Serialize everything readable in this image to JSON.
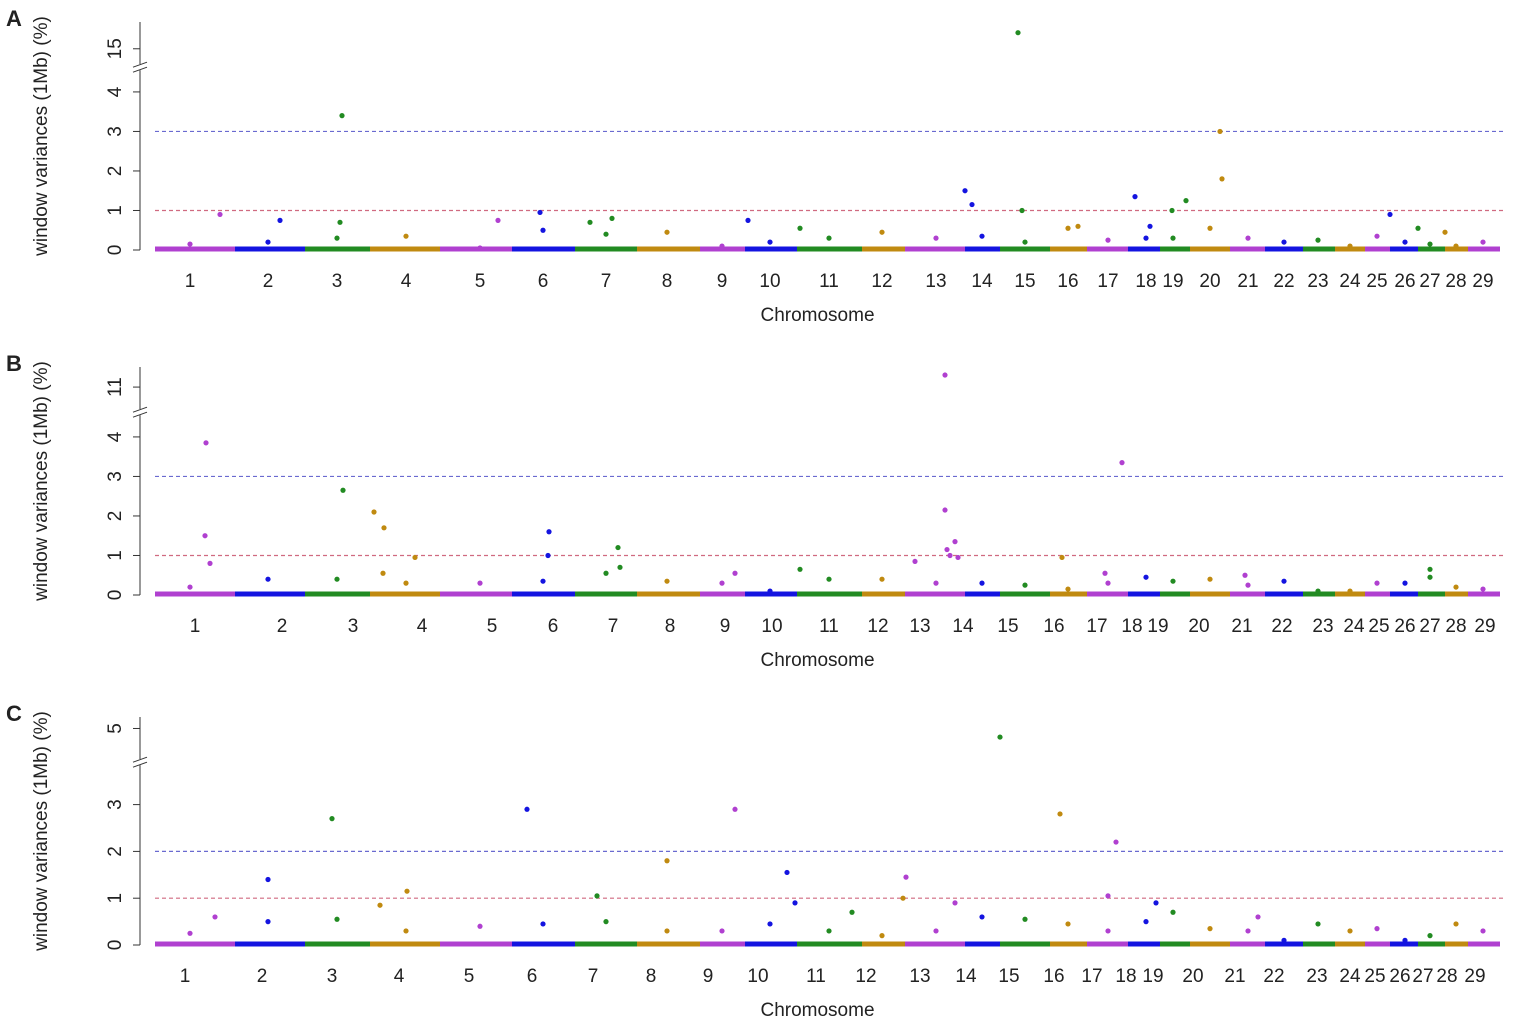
{
  "chart_data": [
    {
      "type": "scatter",
      "panel": "A",
      "y_label": "window variances (1Mb) (%)",
      "x_label": "Chromosome",
      "xlim": [
        0,
        1345
      ],
      "chrom_edges": [
        0,
        80,
        150,
        215,
        285,
        357,
        420,
        482,
        545,
        590,
        642,
        707,
        750,
        810,
        845,
        895,
        932,
        973,
        1005,
        1035,
        1075,
        1110,
        1148,
        1180,
        1210,
        1235,
        1263,
        1290,
        1313,
        1345
      ],
      "xticks": [
        {
          "value": 35,
          "label": "1"
        },
        {
          "value": 113,
          "label": "2"
        },
        {
          "value": 182,
          "label": "3"
        },
        {
          "value": 251,
          "label": "4"
        },
        {
          "value": 325,
          "label": "5"
        },
        {
          "value": 388,
          "label": "6"
        },
        {
          "value": 451,
          "label": "7"
        },
        {
          "value": 512,
          "label": "8"
        },
        {
          "value": 567,
          "label": "9"
        },
        {
          "value": 615,
          "label": "10"
        },
        {
          "value": 674,
          "label": "11"
        },
        {
          "value": 727,
          "label": "12"
        },
        {
          "value": 781,
          "label": "13"
        },
        {
          "value": 827,
          "label": "14"
        },
        {
          "value": 870,
          "label": "15"
        },
        {
          "value": 913,
          "label": "16"
        },
        {
          "value": 953,
          "label": "17"
        },
        {
          "value": 991,
          "label": "18"
        },
        {
          "value": 1018,
          "label": "19"
        },
        {
          "value": 1055,
          "label": "20"
        },
        {
          "value": 1093,
          "label": "21"
        },
        {
          "value": 1129,
          "label": "22"
        },
        {
          "value": 1163,
          "label": "23"
        },
        {
          "value": 1195,
          "label": "24"
        },
        {
          "value": 1222,
          "label": "25"
        },
        {
          "value": 1250,
          "label": "26"
        },
        {
          "value": 1275,
          "label": "27"
        },
        {
          "value": 1301,
          "label": "28"
        },
        {
          "value": 1328,
          "label": "29"
        }
      ],
      "ylim": [
        0,
        16
      ],
      "ybreak": [
        4.5,
        14.5
      ],
      "yticks": [
        0,
        1,
        2,
        3,
        4,
        15
      ],
      "thresholds": [
        {
          "value": 3,
          "color": "#6a6ad0"
        },
        {
          "value": 1,
          "color": "#d06a80"
        }
      ],
      "palette": [
        "#b040d0",
        "#1414e0",
        "#228b22",
        "#c08a10"
      ],
      "x": [
        35,
        113,
        182,
        251,
        325,
        388,
        451,
        512,
        567,
        615,
        674,
        727,
        781,
        827,
        870,
        913,
        953,
        991,
        1018,
        1055,
        1093,
        1129,
        1163,
        1195,
        1222,
        1250,
        1275,
        1301,
        1328,
        863,
        187,
        65,
        185,
        125,
        457,
        385,
        593,
        810,
        817,
        980,
        1031,
        1017,
        867,
        1065,
        1067,
        1235,
        1263,
        923,
        995,
        1290,
        645,
        343,
        435
      ],
      "values": [
        0.15,
        0.2,
        0.3,
        0.35,
        0.05,
        0.5,
        0.4,
        0.45,
        0.1,
        0.2,
        0.3,
        0.45,
        0.3,
        0.35,
        0.2,
        0.55,
        0.25,
        0.3,
        0.3,
        0.55,
        0.3,
        0.2,
        0.25,
        0.1,
        0.35,
        0.2,
        0.15,
        0.1,
        0.2,
        15.6,
        3.4,
        0.9,
        0.7,
        0.75,
        0.8,
        0.95,
        0.75,
        1.5,
        1.15,
        1.35,
        1.25,
        1.0,
        1.0,
        3.0,
        1.8,
        0.9,
        0.55,
        0.6,
        0.6,
        0.45,
        0.55,
        0.75,
        0.7
      ]
    },
    {
      "type": "scatter",
      "panel": "B",
      "y_label": "window variances (1Mb) (%)",
      "x_label": "Chromosome",
      "xlim": [
        0,
        1345
      ],
      "chrom_edges": [
        0,
        80,
        150,
        215,
        285,
        357,
        420,
        482,
        545,
        590,
        642,
        707,
        750,
        810,
        845,
        895,
        932,
        973,
        1005,
        1035,
        1075,
        1110,
        1148,
        1180,
        1210,
        1235,
        1263,
        1290,
        1313,
        1345
      ],
      "xticks": [
        {
          "value": 40,
          "label": "1"
        },
        {
          "value": 127,
          "label": "2"
        },
        {
          "value": 198,
          "label": "3"
        },
        {
          "value": 267,
          "label": "4"
        },
        {
          "value": 337,
          "label": "5"
        },
        {
          "value": 398,
          "label": "6"
        },
        {
          "value": 458,
          "label": "7"
        },
        {
          "value": 515,
          "label": "8"
        },
        {
          "value": 570,
          "label": "9"
        },
        {
          "value": 617,
          "label": "10"
        },
        {
          "value": 674,
          "label": "11"
        },
        {
          "value": 723,
          "label": "12"
        },
        {
          "value": 765,
          "label": "13"
        },
        {
          "value": 808,
          "label": "14"
        },
        {
          "value": 853,
          "label": "15"
        },
        {
          "value": 899,
          "label": "16"
        },
        {
          "value": 942,
          "label": "17"
        },
        {
          "value": 977,
          "label": "18"
        },
        {
          "value": 1003,
          "label": "19"
        },
        {
          "value": 1044,
          "label": "20"
        },
        {
          "value": 1087,
          "label": "21"
        },
        {
          "value": 1127,
          "label": "22"
        },
        {
          "value": 1168,
          "label": "23"
        },
        {
          "value": 1199,
          "label": "24"
        },
        {
          "value": 1224,
          "label": "25"
        },
        {
          "value": 1250,
          "label": "26"
        },
        {
          "value": 1275,
          "label": "27"
        },
        {
          "value": 1301,
          "label": "28"
        },
        {
          "value": 1330,
          "label": "29"
        }
      ],
      "ylim": [
        0,
        11.5
      ],
      "ybreak": [
        4.5,
        10.5
      ],
      "yticks": [
        0,
        1,
        2,
        3,
        4,
        11
      ],
      "thresholds": [
        {
          "value": 3,
          "color": "#6a6ad0"
        },
        {
          "value": 1,
          "color": "#d06a80"
        }
      ],
      "palette": [
        "#b040d0",
        "#1414e0",
        "#228b22",
        "#c08a10"
      ],
      "x": [
        35,
        113,
        182,
        251,
        325,
        388,
        451,
        512,
        567,
        615,
        674,
        727,
        781,
        827,
        870,
        913,
        953,
        991,
        1018,
        1055,
        1093,
        1129,
        1163,
        1195,
        1222,
        1250,
        1275,
        1301,
        1328,
        790,
        51,
        967,
        188,
        790,
        219,
        229,
        50,
        394,
        463,
        800,
        55,
        792,
        795,
        803,
        760,
        393,
        260,
        907,
        228,
        465,
        645,
        1275,
        580,
        950,
        1090
      ],
      "values": [
        0.2,
        0.4,
        0.4,
        0.3,
        0.3,
        0.35,
        0.55,
        0.35,
        0.3,
        0.1,
        0.4,
        0.4,
        0.3,
        0.3,
        0.25,
        0.15,
        0.3,
        0.45,
        0.35,
        0.4,
        0.25,
        0.35,
        0.1,
        0.1,
        0.3,
        0.3,
        0.45,
        0.2,
        0.15,
        11.3,
        3.85,
        3.35,
        2.65,
        2.15,
        2.1,
        1.7,
        1.5,
        1.6,
        1.2,
        1.35,
        0.8,
        1.15,
        1.0,
        0.95,
        0.85,
        1.0,
        0.95,
        0.95,
        0.55,
        0.7,
        0.65,
        0.65,
        0.55,
        0.55,
        0.5
      ]
    },
    {
      "type": "scatter",
      "panel": "C",
      "y_label": "window variances (1Mb) (%)",
      "x_label": "Chromosome",
      "xlim": [
        0,
        1345
      ],
      "chrom_edges": [
        0,
        80,
        150,
        215,
        285,
        357,
        420,
        482,
        545,
        590,
        642,
        707,
        750,
        810,
        845,
        895,
        932,
        973,
        1005,
        1035,
        1075,
        1110,
        1148,
        1180,
        1210,
        1235,
        1263,
        1290,
        1313,
        1345
      ],
      "xticks": [
        {
          "value": 30,
          "label": "1"
        },
        {
          "value": 107,
          "label": "2"
        },
        {
          "value": 177,
          "label": "3"
        },
        {
          "value": 244,
          "label": "4"
        },
        {
          "value": 314,
          "label": "5"
        },
        {
          "value": 377,
          "label": "6"
        },
        {
          "value": 438,
          "label": "7"
        },
        {
          "value": 496,
          "label": "8"
        },
        {
          "value": 553,
          "label": "9"
        },
        {
          "value": 603,
          "label": "10"
        },
        {
          "value": 661,
          "label": "11"
        },
        {
          "value": 711,
          "label": "12"
        },
        {
          "value": 765,
          "label": "13"
        },
        {
          "value": 811,
          "label": "14"
        },
        {
          "value": 854,
          "label": "15"
        },
        {
          "value": 899,
          "label": "16"
        },
        {
          "value": 937,
          "label": "17"
        },
        {
          "value": 971,
          "label": "18"
        },
        {
          "value": 998,
          "label": "19"
        },
        {
          "value": 1038,
          "label": "20"
        },
        {
          "value": 1080,
          "label": "21"
        },
        {
          "value": 1119,
          "label": "22"
        },
        {
          "value": 1162,
          "label": "23"
        },
        {
          "value": 1195,
          "label": "24"
        },
        {
          "value": 1220,
          "label": "25"
        },
        {
          "value": 1245,
          "label": "26"
        },
        {
          "value": 1268,
          "label": "27"
        },
        {
          "value": 1292,
          "label": "28"
        },
        {
          "value": 1320,
          "label": "29"
        }
      ],
      "ylim": [
        0,
        5.2
      ],
      "ybreak": [
        3.8,
        4.5
      ],
      "yticks": [
        0,
        1,
        2,
        3,
        5
      ],
      "thresholds": [
        {
          "value": 2,
          "color": "#6a6ad0"
        },
        {
          "value": 1,
          "color": "#d06a80"
        }
      ],
      "palette": [
        "#b040d0",
        "#1414e0",
        "#228b22",
        "#c08a10"
      ],
      "x": [
        35,
        113,
        182,
        251,
        325,
        388,
        451,
        512,
        567,
        615,
        674,
        727,
        781,
        827,
        870,
        913,
        953,
        991,
        1018,
        1055,
        1093,
        1129,
        1163,
        1195,
        1222,
        1250,
        1275,
        1301,
        1328,
        845,
        177,
        372,
        580,
        905,
        961,
        512,
        113,
        252,
        632,
        751,
        953,
        442,
        640,
        225,
        800,
        697,
        748,
        1103,
        1001,
        60
      ],
      "values": [
        0.25,
        0.5,
        0.55,
        0.3,
        0.4,
        0.45,
        0.5,
        0.3,
        0.3,
        0.45,
        0.3,
        0.2,
        0.3,
        0.6,
        0.55,
        0.45,
        0.3,
        0.5,
        0.7,
        0.35,
        0.3,
        0.1,
        0.45,
        0.3,
        0.35,
        0.1,
        0.2,
        0.45,
        0.3,
        4.85,
        2.7,
        2.9,
        2.9,
        2.8,
        2.2,
        1.8,
        1.4,
        1.15,
        1.55,
        1.45,
        1.05,
        1.05,
        0.9,
        0.85,
        0.9,
        0.7,
        1.0,
        0.6,
        0.9,
        0.6
      ]
    }
  ]
}
